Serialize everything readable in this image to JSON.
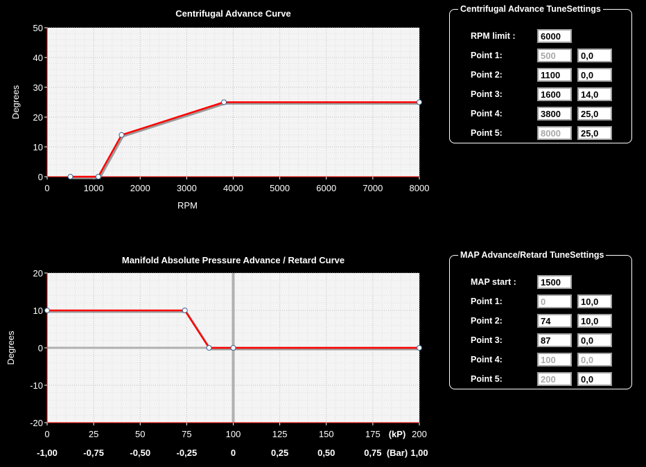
{
  "colors": {
    "background": "#000000",
    "plot_background": "#f4f4f4",
    "curve": "#ff0000",
    "curve_shadow": "#9a9a9a",
    "axis_line": "#ff0000",
    "zero_line": "#b0b0b0"
  },
  "centrifugal_settings": {
    "legend": "Centrifugal Advance TuneSettings",
    "limit_label": "RPM limit :",
    "limit_value": "6000",
    "points": [
      {
        "label": "Point 1:",
        "rpm": "500",
        "deg": "0,0",
        "rpm_disabled": true
      },
      {
        "label": "Point 2:",
        "rpm": "1100",
        "deg": "0,0",
        "rpm_disabled": false
      },
      {
        "label": "Point 3:",
        "rpm": "1600",
        "deg": "14,0",
        "rpm_disabled": false
      },
      {
        "label": "Point 4:",
        "rpm": "3800",
        "deg": "25,0",
        "rpm_disabled": false
      },
      {
        "label": "Point 5:",
        "rpm": "8000",
        "deg": "25,0",
        "rpm_disabled": true
      }
    ]
  },
  "map_settings": {
    "legend": "MAP Advance/Retard TuneSettings",
    "start_label": "MAP start :",
    "start_value": "1500",
    "points": [
      {
        "label": "Point 1:",
        "kp": "0",
        "deg": "10,0",
        "kp_disabled": true,
        "deg_disabled": false
      },
      {
        "label": "Point 2:",
        "kp": "74",
        "deg": "10,0",
        "kp_disabled": false,
        "deg_disabled": false
      },
      {
        "label": "Point 3:",
        "kp": "87",
        "deg": "0,0",
        "kp_disabled": false,
        "deg_disabled": false
      },
      {
        "label": "Point 4:",
        "kp": "100",
        "deg": "0,0",
        "kp_disabled": true,
        "deg_disabled": true
      },
      {
        "label": "Point 5:",
        "kp": "200",
        "deg": "0,0",
        "kp_disabled": true,
        "deg_disabled": false
      }
    ]
  },
  "chart_data": [
    {
      "type": "line",
      "title": "Centrifugal Advance Curve",
      "xlabel": "RPM",
      "ylabel": "Degrees",
      "xlim": [
        0,
        8000
      ],
      "ylim": [
        0,
        50
      ],
      "xticks": [
        "0",
        "1000",
        "2000",
        "3000",
        "4000",
        "5000",
        "6000",
        "7000",
        "8000"
      ],
      "yticks": [
        "0",
        "10",
        "20",
        "30",
        "40",
        "50"
      ],
      "grid": true,
      "series": [
        {
          "x": [
            500,
            1100,
            1600,
            3800,
            8000
          ],
          "y": [
            0,
            0,
            14,
            25,
            25
          ]
        }
      ]
    },
    {
      "type": "line",
      "title": "Manifold Absolute Pressure Advance / Retard Curve",
      "xlabel": "",
      "ylabel": "Degrees",
      "xlim": [
        0,
        200
      ],
      "ylim": [
        -20,
        20
      ],
      "xticks": [
        "0",
        "25",
        "50",
        "75",
        "100",
        "125",
        "150",
        "175",
        "200"
      ],
      "xticks_secondary": [
        "-1,00",
        "-0,75",
        "-0,50",
        "-0,25",
        "0",
        "0,25",
        "0,50",
        "0,75",
        "1,00"
      ],
      "unit_primary": "(kP)",
      "unit_secondary": "(Bar)",
      "yticks": [
        "-20",
        "-10",
        "0",
        "10",
        "20"
      ],
      "grid": true,
      "series": [
        {
          "x": [
            0,
            74,
            87,
            100,
            200
          ],
          "y": [
            10,
            10,
            0,
            0,
            0
          ]
        }
      ]
    }
  ]
}
